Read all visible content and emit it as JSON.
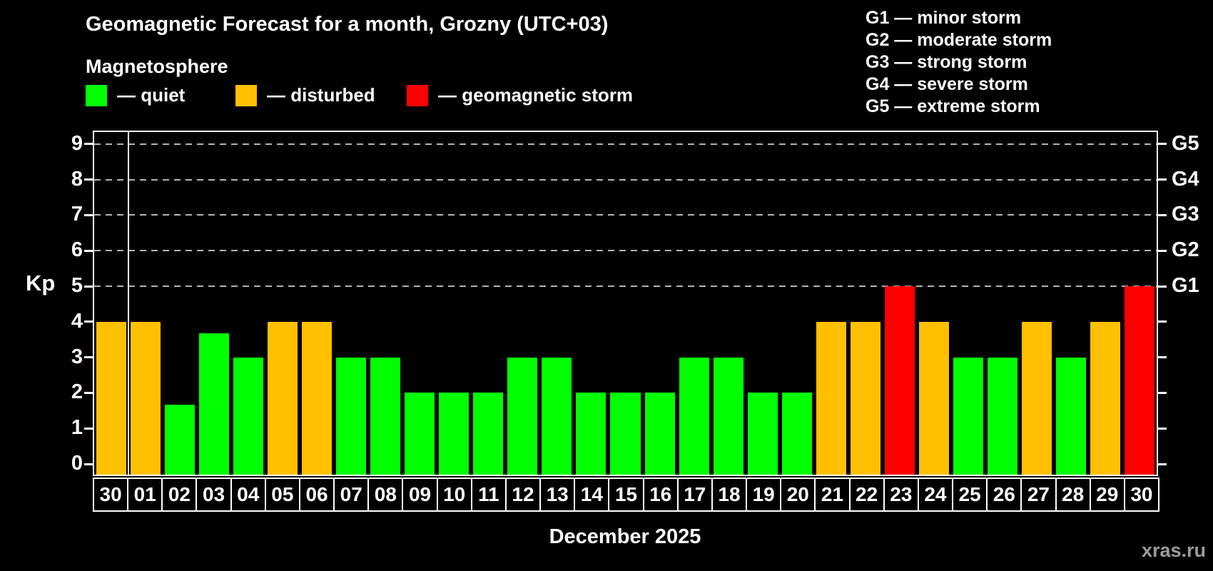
{
  "header": {
    "title": "Geomagnetic Forecast for a month, Grozny (UTC+03)",
    "subtitle": "Magnetosphere"
  },
  "legend": [
    {
      "key": "quiet",
      "label": "— quiet"
    },
    {
      "key": "disturbed",
      "label": "— disturbed"
    },
    {
      "key": "storm",
      "label": "— geomagnetic storm"
    }
  ],
  "g_scale_legend": [
    {
      "code": "G1",
      "text": "G1 — minor storm"
    },
    {
      "code": "G2",
      "text": "G2 — moderate storm"
    },
    {
      "code": "G3",
      "text": "G3 — strong storm"
    },
    {
      "code": "G4",
      "text": "G4 — severe storm"
    },
    {
      "code": "G5",
      "text": "G5 — extreme storm"
    }
  ],
  "axis": {
    "kp_label": "Kp",
    "y_ticks": [
      "0",
      "1",
      "2",
      "3",
      "4",
      "5",
      "6",
      "7",
      "8",
      "9"
    ],
    "right_axis_labels": [
      {
        "kp": 5,
        "label": "G1"
      },
      {
        "kp": 6,
        "label": "G2"
      },
      {
        "kp": 7,
        "label": "G3"
      },
      {
        "kp": 8,
        "label": "G4"
      },
      {
        "kp": 9,
        "label": "G5"
      }
    ]
  },
  "x_axis_title": "December 2025",
  "watermark": "xras.ru",
  "colors": {
    "quiet": "#00ff00",
    "disturbed": "#ffc000",
    "storm": "#ff0000",
    "grid": "#b3b3b3",
    "frame": "#ffffff",
    "watermark": "#9c9c9c"
  },
  "chart_data": {
    "type": "bar",
    "title": "Geomagnetic Forecast for a month, Grozny (UTC+03)",
    "ylabel": "Kp",
    "xlabel": "December 2025",
    "ylim": [
      0,
      9
    ],
    "gridlines_at_kp": [
      5,
      6,
      7,
      8,
      9
    ],
    "grid_style": "dashed",
    "separator_after_index": 0,
    "categories": [
      "30",
      "01",
      "02",
      "03",
      "04",
      "05",
      "06",
      "07",
      "08",
      "09",
      "10",
      "11",
      "12",
      "13",
      "14",
      "15",
      "16",
      "17",
      "18",
      "19",
      "20",
      "21",
      "22",
      "23",
      "24",
      "25",
      "26",
      "27",
      "28",
      "29",
      "30"
    ],
    "values": [
      4,
      4,
      1.67,
      3.67,
      3,
      4,
      4,
      3,
      3,
      2,
      2,
      2,
      3,
      3,
      2,
      2,
      2,
      3,
      3,
      2,
      2,
      4,
      4,
      5,
      4,
      3,
      3,
      4,
      3,
      4,
      5
    ],
    "levels": [
      "disturbed",
      "disturbed",
      "quiet",
      "quiet",
      "quiet",
      "disturbed",
      "disturbed",
      "quiet",
      "quiet",
      "quiet",
      "quiet",
      "quiet",
      "quiet",
      "quiet",
      "quiet",
      "quiet",
      "quiet",
      "quiet",
      "quiet",
      "quiet",
      "quiet",
      "disturbed",
      "disturbed",
      "storm",
      "disturbed",
      "quiet",
      "quiet",
      "disturbed",
      "quiet",
      "disturbed",
      "storm"
    ]
  }
}
